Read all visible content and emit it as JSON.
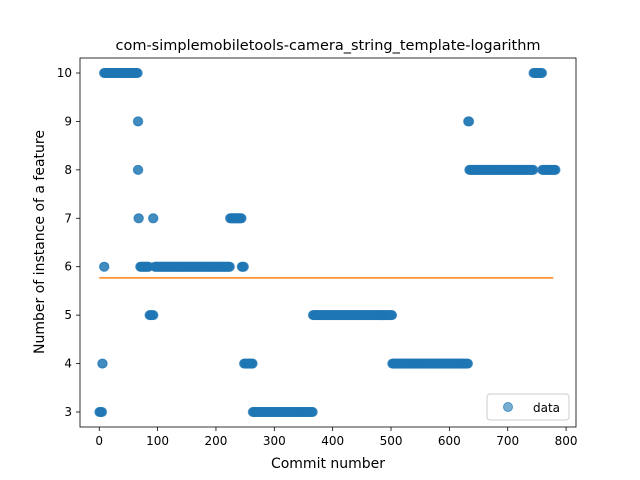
{
  "chart_data": {
    "type": "scatter",
    "title": "com-simplemobiletools-camera_string_template-logarithm",
    "xlabel": "Commit number",
    "ylabel": "Number of instance of a feature",
    "xlim": [
      -33,
      817
    ],
    "ylim": [
      2.69,
      10.31
    ],
    "xticks": [
      0,
      100,
      200,
      300,
      400,
      500,
      600,
      700,
      800
    ],
    "yticks": [
      3,
      4,
      5,
      6,
      7,
      8,
      9,
      10
    ],
    "legend": {
      "position": "lower-right",
      "entries": [
        "data"
      ]
    },
    "colors": {
      "data": "#1f77b4",
      "fit": "#ff7f0e"
    },
    "series": [
      {
        "name": "data",
        "kind": "scatter",
        "segments": [
          {
            "x_start": 0,
            "x_end": 5,
            "y": 3
          },
          {
            "x_start": 5,
            "x_end": 6,
            "y": 4
          },
          {
            "x_start": 8,
            "x_end": 9,
            "y": 6
          },
          {
            "x_start": 8,
            "x_end": 66,
            "y": 10
          },
          {
            "x_start": 66,
            "x_end": 67,
            "y": 9
          },
          {
            "x_start": 66,
            "x_end": 67,
            "y": 8
          },
          {
            "x_start": 67,
            "x_end": 68,
            "y": 7
          },
          {
            "x_start": 70,
            "x_end": 85,
            "y": 6
          },
          {
            "x_start": 86,
            "x_end": 93,
            "y": 5
          },
          {
            "x_start": 92,
            "x_end": 93,
            "y": 7
          },
          {
            "x_start": 95,
            "x_end": 224,
            "y": 6
          },
          {
            "x_start": 224,
            "x_end": 244,
            "y": 7
          },
          {
            "x_start": 244,
            "x_end": 248,
            "y": 6
          },
          {
            "x_start": 248,
            "x_end": 263,
            "y": 4
          },
          {
            "x_start": 263,
            "x_end": 366,
            "y": 3
          },
          {
            "x_start": 366,
            "x_end": 502,
            "y": 5
          },
          {
            "x_start": 502,
            "x_end": 632,
            "y": 4
          },
          {
            "x_start": 632,
            "x_end": 634,
            "y": 9
          },
          {
            "x_start": 634,
            "x_end": 744,
            "y": 8
          },
          {
            "x_start": 744,
            "x_end": 759,
            "y": 10
          },
          {
            "x_start": 759,
            "x_end": 782,
            "y": 8
          }
        ]
      },
      {
        "name": "",
        "kind": "line",
        "x": [
          0,
          778
        ],
        "y": [
          5.77,
          5.77
        ]
      }
    ]
  }
}
